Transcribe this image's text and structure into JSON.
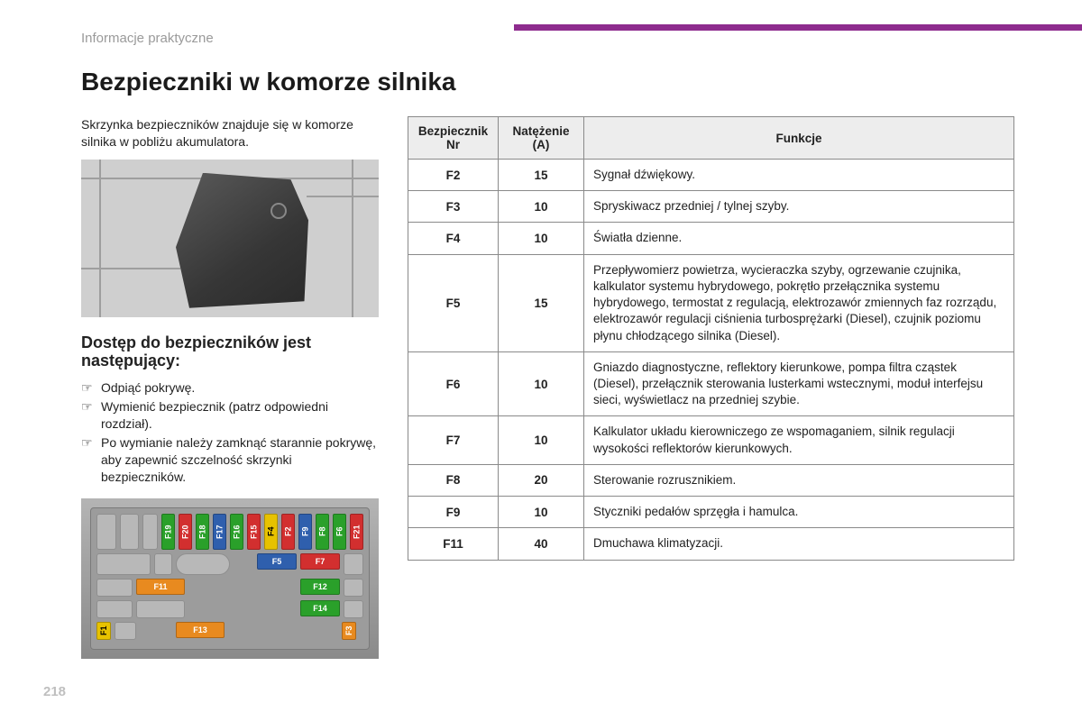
{
  "section_label": "Informacje praktyczne",
  "title": "Bezpieczniki w komorze silnika",
  "intro": "Skrzynka bezpieczników znajduje się w komorze silnika w pobliżu akumulatora.",
  "subhead": "Dostęp do bezpieczników jest następujący:",
  "steps": [
    "Odpiąć pokrywę.",
    "Wymienić bezpiecznik (patrz odpowiedni rozdział).",
    "Po wymianie należy zamknąć starannie pokrywę, aby zapewnić szczelność skrzynki bezpieczników."
  ],
  "bullet_glyph": "☞",
  "fusebox": {
    "row1_fuses": [
      {
        "label": "F19",
        "bg": "#2aa02a"
      },
      {
        "label": "F20",
        "bg": "#d22f2f"
      },
      {
        "label": "F18",
        "bg": "#2aa02a"
      },
      {
        "label": "F17",
        "bg": "#2f5fad"
      },
      {
        "label": "F16",
        "bg": "#2aa02a"
      },
      {
        "label": "F15",
        "bg": "#d22f2f"
      },
      {
        "label": "F4",
        "bg": "#e7c200",
        "fg": "#000"
      },
      {
        "label": "F2",
        "bg": "#d22f2f"
      },
      {
        "label": "F9",
        "bg": "#2f5fad"
      },
      {
        "label": "F8",
        "bg": "#2aa02a"
      },
      {
        "label": "F6",
        "bg": "#2aa02a"
      },
      {
        "label": "F21",
        "bg": "#d22f2f"
      }
    ],
    "row2_fuses": [
      {
        "label": "F5",
        "bg": "#2f5fad"
      },
      {
        "label": "F7",
        "bg": "#d22f2f"
      }
    ],
    "row3_left": {
      "label": "F11",
      "bg": "#e88a1f"
    },
    "row3_right": {
      "label": "F12",
      "bg": "#2aa02a"
    },
    "row4": {
      "label": "F14",
      "bg": "#2aa02a"
    },
    "row5_left": {
      "label": "F1",
      "bg": "#e7c200",
      "fg": "#000"
    },
    "row5_mid": {
      "label": "F13",
      "bg": "#e88a1f"
    },
    "row5_right": {
      "label": "F3",
      "bg": "#e88a1f"
    }
  },
  "table": {
    "headers": {
      "col1_a": "Bezpiecznik",
      "col1_b": "Nr",
      "col2_a": "Natężenie",
      "col2_b": "(A)",
      "col3": "Funkcje"
    },
    "rows": [
      {
        "nr": "F2",
        "amp": "15",
        "fn": "Sygnał dźwiękowy."
      },
      {
        "nr": "F3",
        "amp": "10",
        "fn": "Spryskiwacz przedniej / tylnej szyby."
      },
      {
        "nr": "F4",
        "amp": "10",
        "fn": "Światła dzienne."
      },
      {
        "nr": "F5",
        "amp": "15",
        "fn": "Przepływomierz powietrza, wycieraczka szyby, ogrzewanie czujnika, kalkulator systemu hybrydowego, pokrętło przełącznika systemu hybrydowego, termostat z regulacją, elektrozawór zmiennych faz rozrządu, elektrozawór regulacji ciśnienia turbosprężarki (Diesel), czujnik poziomu płynu chłodzącego silnika (Diesel)."
      },
      {
        "nr": "F6",
        "amp": "10",
        "fn": "Gniazdo diagnostyczne, reflektory kierunkowe, pompa filtra cząstek (Diesel), przełącznik sterowania lusterkami wstecznymi, moduł interfejsu sieci, wyświetlacz na przedniej szybie."
      },
      {
        "nr": "F7",
        "amp": "10",
        "fn": "Kalkulator układu kierowniczego ze wspomaganiem, silnik regulacji wysokości reflektorów kierunkowych."
      },
      {
        "nr": "F8",
        "amp": "20",
        "fn": "Sterowanie rozrusznikiem."
      },
      {
        "nr": "F9",
        "amp": "10",
        "fn": "Styczniki pedałów sprzęgła i hamulca."
      },
      {
        "nr": "F11",
        "amp": "40",
        "fn": "Dmuchawa klimatyzacji."
      }
    ]
  },
  "page_number": "218",
  "colors": {
    "accent": "#8e2c8e",
    "label_grey": "#9a9a9a",
    "border": "#8a8a8a",
    "th_bg": "#ededed"
  }
}
